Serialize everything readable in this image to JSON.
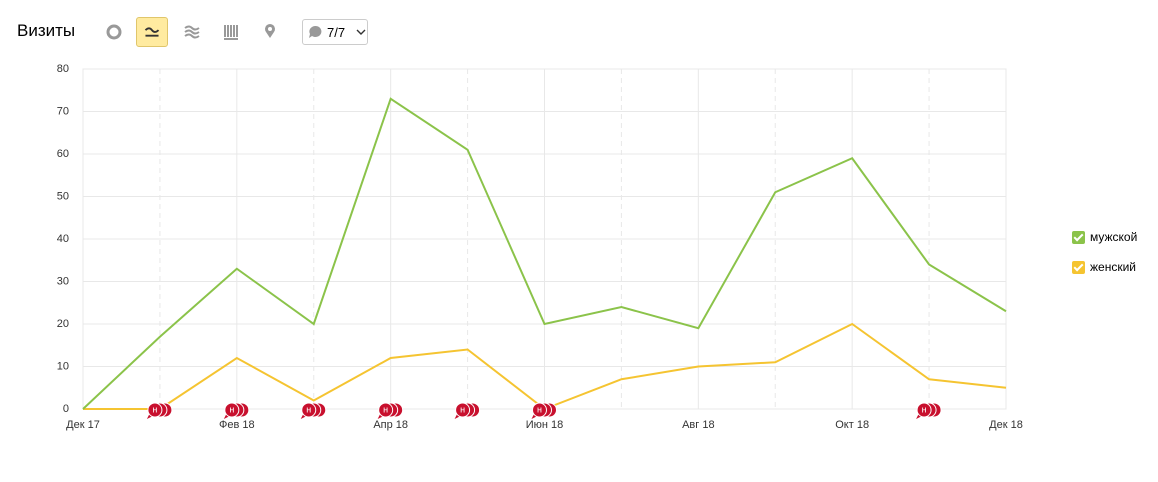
{
  "toolbar": {
    "title": "Визиты",
    "filter_label": "7/7"
  },
  "chart_data": {
    "type": "line",
    "categories": [
      "Дек 17",
      null,
      "Фев 18",
      null,
      "Апр 18",
      null,
      "Июн 18",
      null,
      "Авг 18",
      null,
      "Окт 18",
      null,
      "Дек 18"
    ],
    "series": [
      {
        "name": "мужской",
        "color": "#8bc34a",
        "values": [
          0,
          17,
          33,
          20,
          73,
          61,
          20,
          24,
          19,
          51,
          59,
          34,
          23
        ]
      },
      {
        "name": "женский",
        "color": "#f5c431",
        "values": [
          0,
          0,
          12,
          2,
          12,
          14,
          0,
          7,
          10,
          11,
          20,
          7,
          5
        ]
      }
    ],
    "ylim": [
      0,
      80
    ],
    "yticks": [
      0,
      10,
      20,
      30,
      40,
      50,
      60,
      70,
      80
    ],
    "grid": true,
    "legend": "right",
    "annotations": [
      {
        "label": "н",
        "x": 1
      },
      {
        "label": "н",
        "x": 2
      },
      {
        "label": "н",
        "x": 3
      },
      {
        "label": "н",
        "x": 4
      },
      {
        "label": "н",
        "x": 5
      },
      {
        "label": "н",
        "x": 6
      },
      {
        "label": "н",
        "x": 11
      }
    ]
  }
}
